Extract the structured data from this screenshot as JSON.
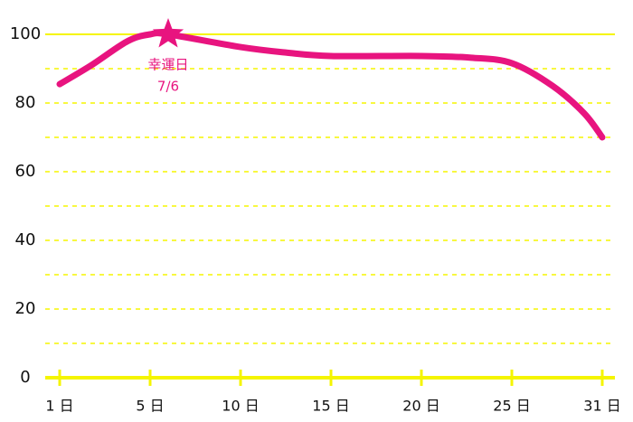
{
  "chart_data": {
    "type": "line",
    "x": [
      1,
      2.4,
      4,
      5,
      6,
      10,
      12.5,
      15,
      20,
      22.75,
      25,
      27.7,
      29.8,
      31
    ],
    "series": [
      {
        "name": null,
        "color": "#e8147f",
        "values": [
          85.5,
          91,
          98,
          100,
          100,
          96.3,
          94.7,
          93.7,
          93.7,
          93.2,
          91.6,
          85,
          77,
          70
        ]
      }
    ],
    "ylim": [
      0,
      100
    ],
    "yticks": [
      0,
      20,
      40,
      60,
      80,
      100
    ],
    "yminorticks": [
      10,
      30,
      50,
      70,
      90
    ],
    "xlim": [
      1,
      31
    ],
    "xticks": [
      {
        "value": 1,
        "label": "1 日"
      },
      {
        "value": 5,
        "label": "5 日"
      },
      {
        "value": 10,
        "label": "10 日"
      },
      {
        "value": 15,
        "label": "15 日"
      },
      {
        "value": 20,
        "label": "20 日"
      },
      {
        "value": 25,
        "label": "25 日"
      },
      {
        "value": 31,
        "label": "31 日"
      }
    ],
    "grid": true,
    "axis_color": "#f5f500",
    "annotation": {
      "label": "幸運日",
      "date": "7/6",
      "x": 6,
      "y": 100
    }
  }
}
